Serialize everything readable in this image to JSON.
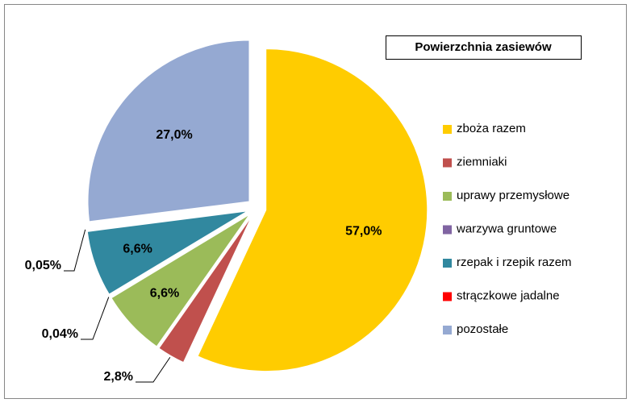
{
  "chart_data": {
    "type": "pie",
    "title": "Powierzchnia zasiewów",
    "categories": [
      "zboża razem",
      "ziemniaki",
      "uprawy przemysłowe",
      "warzywa gruntowe",
      "rzepak i rzepik razem",
      "strączkowe jadalne",
      "pozostałe"
    ],
    "values": [
      57.0,
      2.8,
      6.6,
      0.04,
      6.6,
      0.05,
      27.0
    ],
    "value_labels": [
      "57,0%",
      "2,8%",
      "6,6%",
      "0,04%",
      "6,6%",
      "0,05%",
      "27,0%"
    ],
    "colors": [
      "#ffcc00",
      "#c0504d",
      "#9bbb59",
      "#8064a2",
      "#31889f",
      "#ff0000",
      "#95a9d2"
    ],
    "legend": "right"
  }
}
